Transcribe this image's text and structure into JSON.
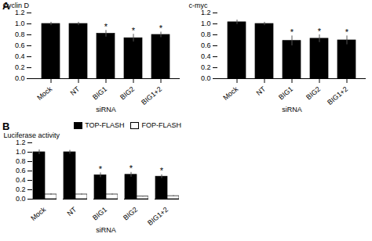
{
  "chart_data": [
    {
      "type": "bar",
      "ylabel": "Cyclin D",
      "xlabel": "siRNA",
      "categories": [
        "Mock",
        "NT",
        "BIG1",
        "BIG2",
        "BIG1+2"
      ],
      "values": [
        1.0,
        1.0,
        0.82,
        0.74,
        0.8
      ],
      "errors": [
        0.03,
        0.03,
        0.06,
        0.07,
        0.05
      ],
      "color": "#000000",
      "ylim": [
        0,
        1.2
      ],
      "yticks": [
        {
          "value": 0,
          "label": "0.0"
        },
        0.2,
        0.4,
        0.6,
        0.8,
        {
          "value": 1,
          "label": "1.0"
        },
        1.2
      ],
      "grid": false,
      "annotations": [
        {
          "text": "A"
        },
        {
          "category": "BIG1",
          "text": "*"
        },
        {
          "category": "BIG2",
          "text": "*"
        },
        {
          "category": "BIG1+2",
          "text": "*"
        }
      ]
    },
    {
      "type": "bar",
      "ylabel": "c-myc",
      "xlabel": "siRNA",
      "categories": [
        "Mock",
        "NT",
        "BIG1",
        "BIG2",
        "BIG1+2"
      ],
      "values": [
        1.03,
        1.0,
        0.69,
        0.73,
        0.7
      ],
      "errors": [
        0.04,
        0.03,
        0.09,
        0.07,
        0.08
      ],
      "color": "#000000",
      "ylim": [
        0,
        1.2
      ],
      "yticks": [
        {
          "value": 0,
          "label": "0.0"
        },
        0.2,
        0.4,
        0.6,
        0.8,
        {
          "value": 1,
          "label": "1.0"
        },
        1.2
      ],
      "grid": false,
      "annotations": [
        {
          "category": "BIG1",
          "text": "*"
        },
        {
          "category": "BIG2",
          "text": "*"
        },
        {
          "category": "BIG1+2",
          "text": "*"
        }
      ]
    },
    {
      "type": "bar",
      "ylabel": "Luciferase activity",
      "xlabel": "siRNA",
      "categories": [
        "Mock",
        "NT",
        "BIG1",
        "BIG2",
        "BIG1+2"
      ],
      "series": [
        {
          "name": "TOP-FLASH",
          "color": "#000000",
          "values": [
            1.0,
            1.0,
            0.51,
            0.52,
            0.48
          ],
          "errors": [
            0.05,
            0.04,
            0.05,
            0.05,
            0.04
          ]
        },
        {
          "name": "FOP-FLASH",
          "color": "#ffffff",
          "values": [
            0.1,
            0.1,
            0.1,
            0.055,
            0.065
          ],
          "errors": [
            0.015,
            0.012,
            0.012,
            0.01,
            0.01
          ]
        }
      ],
      "ylim": [
        0,
        1.2
      ],
      "yticks": [
        {
          "value": 0,
          "label": "0.0"
        },
        0.2,
        0.4,
        0.6,
        0.8,
        {
          "value": 1,
          "label": "1.0"
        },
        1.2
      ],
      "grid": false,
      "legend": "upper right",
      "annotations": [
        {
          "text": "B"
        },
        {
          "category": "BIG1",
          "series": "TOP-FLASH",
          "text": "*"
        },
        {
          "category": "BIG2",
          "series": "TOP-FLASH",
          "text": "*"
        },
        {
          "category": "BIG1+2",
          "series": "TOP-FLASH",
          "text": "*"
        }
      ]
    }
  ]
}
